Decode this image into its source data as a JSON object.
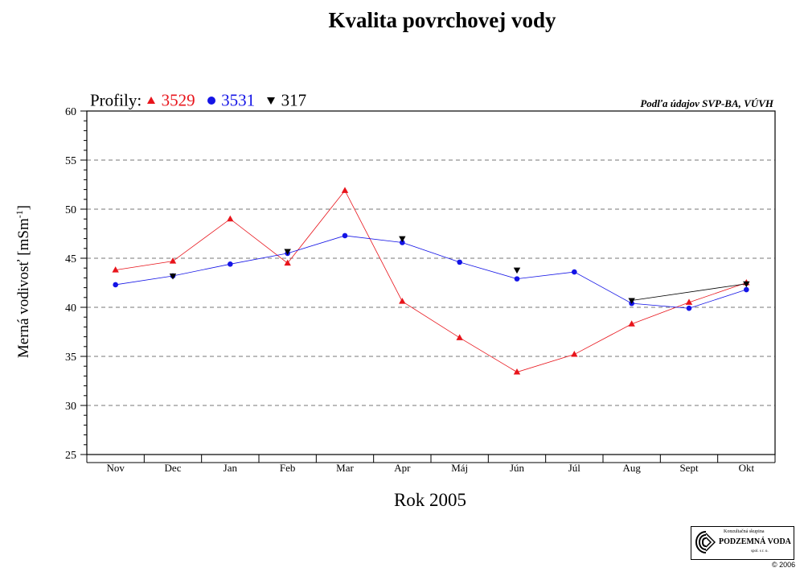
{
  "chart_data": {
    "type": "line",
    "title": "Kvalita povrchovej vody",
    "legend_title": "Profily:",
    "source_note": "Podľa údajov SVP-BA, VÚVH",
    "xlabel": "Rok 2005",
    "ylabel": "Merná vodivosť [mSm",
    "ylabel_sup": "-1",
    "ylabel_end": "]",
    "categories": [
      "Nov",
      "Dec",
      "Jan",
      "Feb",
      "Mar",
      "Apr",
      "Máj",
      "Jún",
      "Júl",
      "Aug",
      "Sept",
      "Okt"
    ],
    "ylim": [
      25,
      60
    ],
    "y_ticks": [
      25,
      30,
      35,
      40,
      45,
      50,
      55,
      60
    ],
    "grid": true,
    "legend_position": "top-left",
    "series": [
      {
        "name": "3529",
        "color": "#e8141b",
        "marker": "triangle-up",
        "values": [
          43.8,
          44.7,
          49.0,
          44.5,
          51.9,
          40.6,
          36.9,
          33.4,
          35.2,
          38.3,
          40.5,
          42.5
        ]
      },
      {
        "name": "3531",
        "color": "#1414e6",
        "marker": "circle",
        "values": [
          42.3,
          43.2,
          44.4,
          45.5,
          47.3,
          46.6,
          44.6,
          42.9,
          43.6,
          40.4,
          39.9,
          41.8
        ]
      },
      {
        "name": "317",
        "color": "#000000",
        "marker": "triangle-down",
        "values": [
          null,
          43.2,
          null,
          45.7,
          null,
          47.0,
          null,
          43.8,
          null,
          40.7,
          null,
          42.4
        ]
      }
    ]
  },
  "logo": {
    "top_text": "Konzultačná skupina",
    "main_text": "PODZEMNÁ VODA",
    "sub_text": "spol. s r. o.",
    "icon": "podzemna-voda-logo-mark"
  },
  "copyright": "© 2006"
}
